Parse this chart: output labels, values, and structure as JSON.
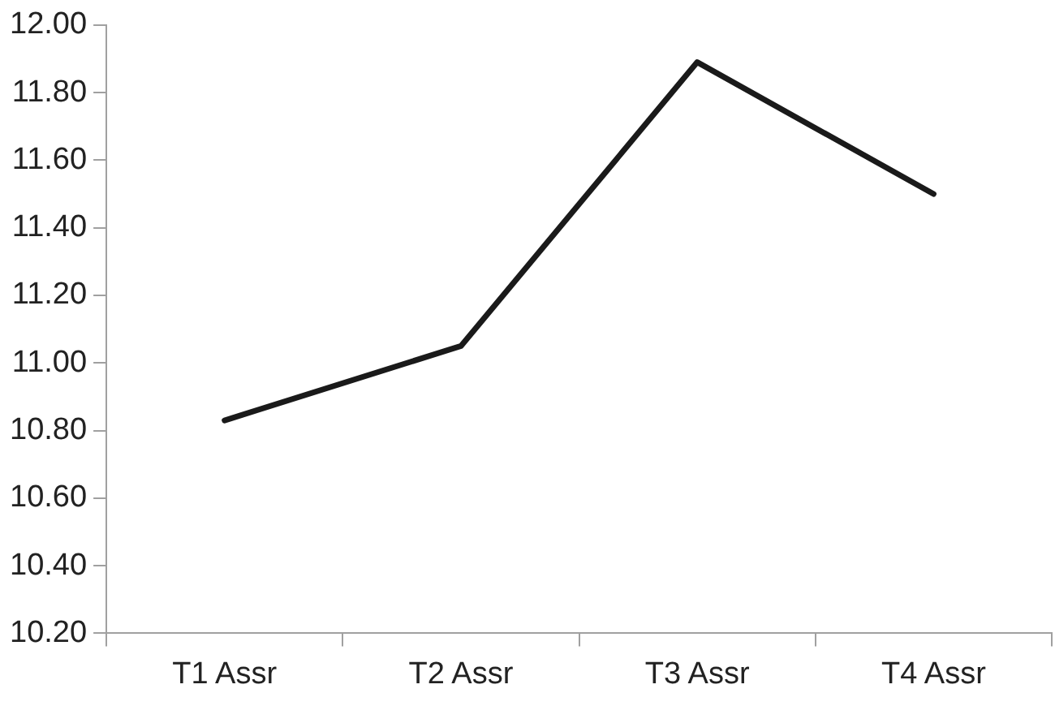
{
  "chart_data": {
    "type": "line",
    "categories": [
      "T1 Assr",
      "T2 Assr",
      "T3 Assr",
      "T4 Assr"
    ],
    "series": [
      {
        "color": "#1a1a1a",
        "values": [
          10.83,
          11.05,
          11.89,
          11.5
        ]
      }
    ],
    "ylim": [
      10.2,
      12.0
    ],
    "yticks": [
      {
        "value": 10.2,
        "label": "10.20"
      },
      {
        "value": 10.4,
        "label": "10.40"
      },
      {
        "value": 10.6,
        "label": "10.60"
      },
      {
        "value": 10.8,
        "label": "10.80"
      },
      {
        "value": 11.0,
        "label": "11.00"
      },
      {
        "value": 11.2,
        "label": "11.20"
      },
      {
        "value": 11.4,
        "label": "11.40"
      },
      {
        "value": 11.6,
        "label": "11.60"
      },
      {
        "value": 11.8,
        "label": "11.80"
      },
      {
        "value": 12.0,
        "label": "12.00"
      }
    ],
    "grid": false,
    "legend": false,
    "marker": "none",
    "line_style": "solid"
  }
}
